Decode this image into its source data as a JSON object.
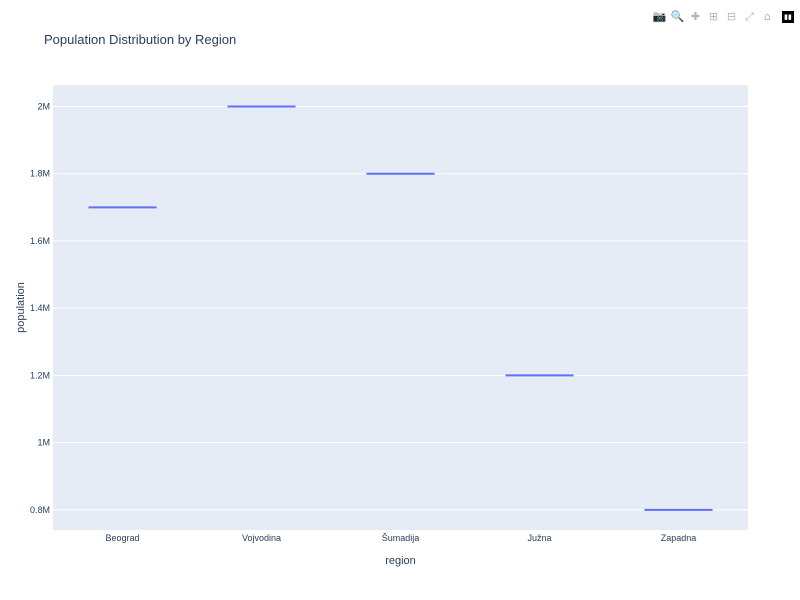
{
  "title": "Population Distribution by Region",
  "modebar": {
    "icons": [
      "camera-icon",
      "zoom-icon",
      "pan-icon",
      "zoom-in-icon",
      "zoom-out-icon",
      "autoscale-icon",
      "home-icon",
      "plotly-logo-icon"
    ]
  },
  "colors": {
    "plot_bg": "#e5ecf6",
    "grid": "#ffffff",
    "series": "#636efa",
    "text": "#2a3f5f"
  },
  "chart_data": {
    "type": "box",
    "title": "Population Distribution by Region",
    "xlabel": "region",
    "ylabel": "population",
    "categories": [
      "Beograd",
      "Vojvodina",
      "Šumadija",
      "Južna",
      "Zapadna"
    ],
    "values": [
      1700000,
      2000000,
      1800000,
      1200000,
      800000
    ],
    "yticks": [
      800000,
      1000000,
      1200000,
      1400000,
      1600000,
      1800000,
      2000000
    ],
    "ytick_labels": [
      "0.8M",
      "1M",
      "1.2M",
      "1.4M",
      "1.6M",
      "1.8M",
      "2M"
    ],
    "ylim": [
      740000,
      2064000
    ],
    "grid": true
  }
}
